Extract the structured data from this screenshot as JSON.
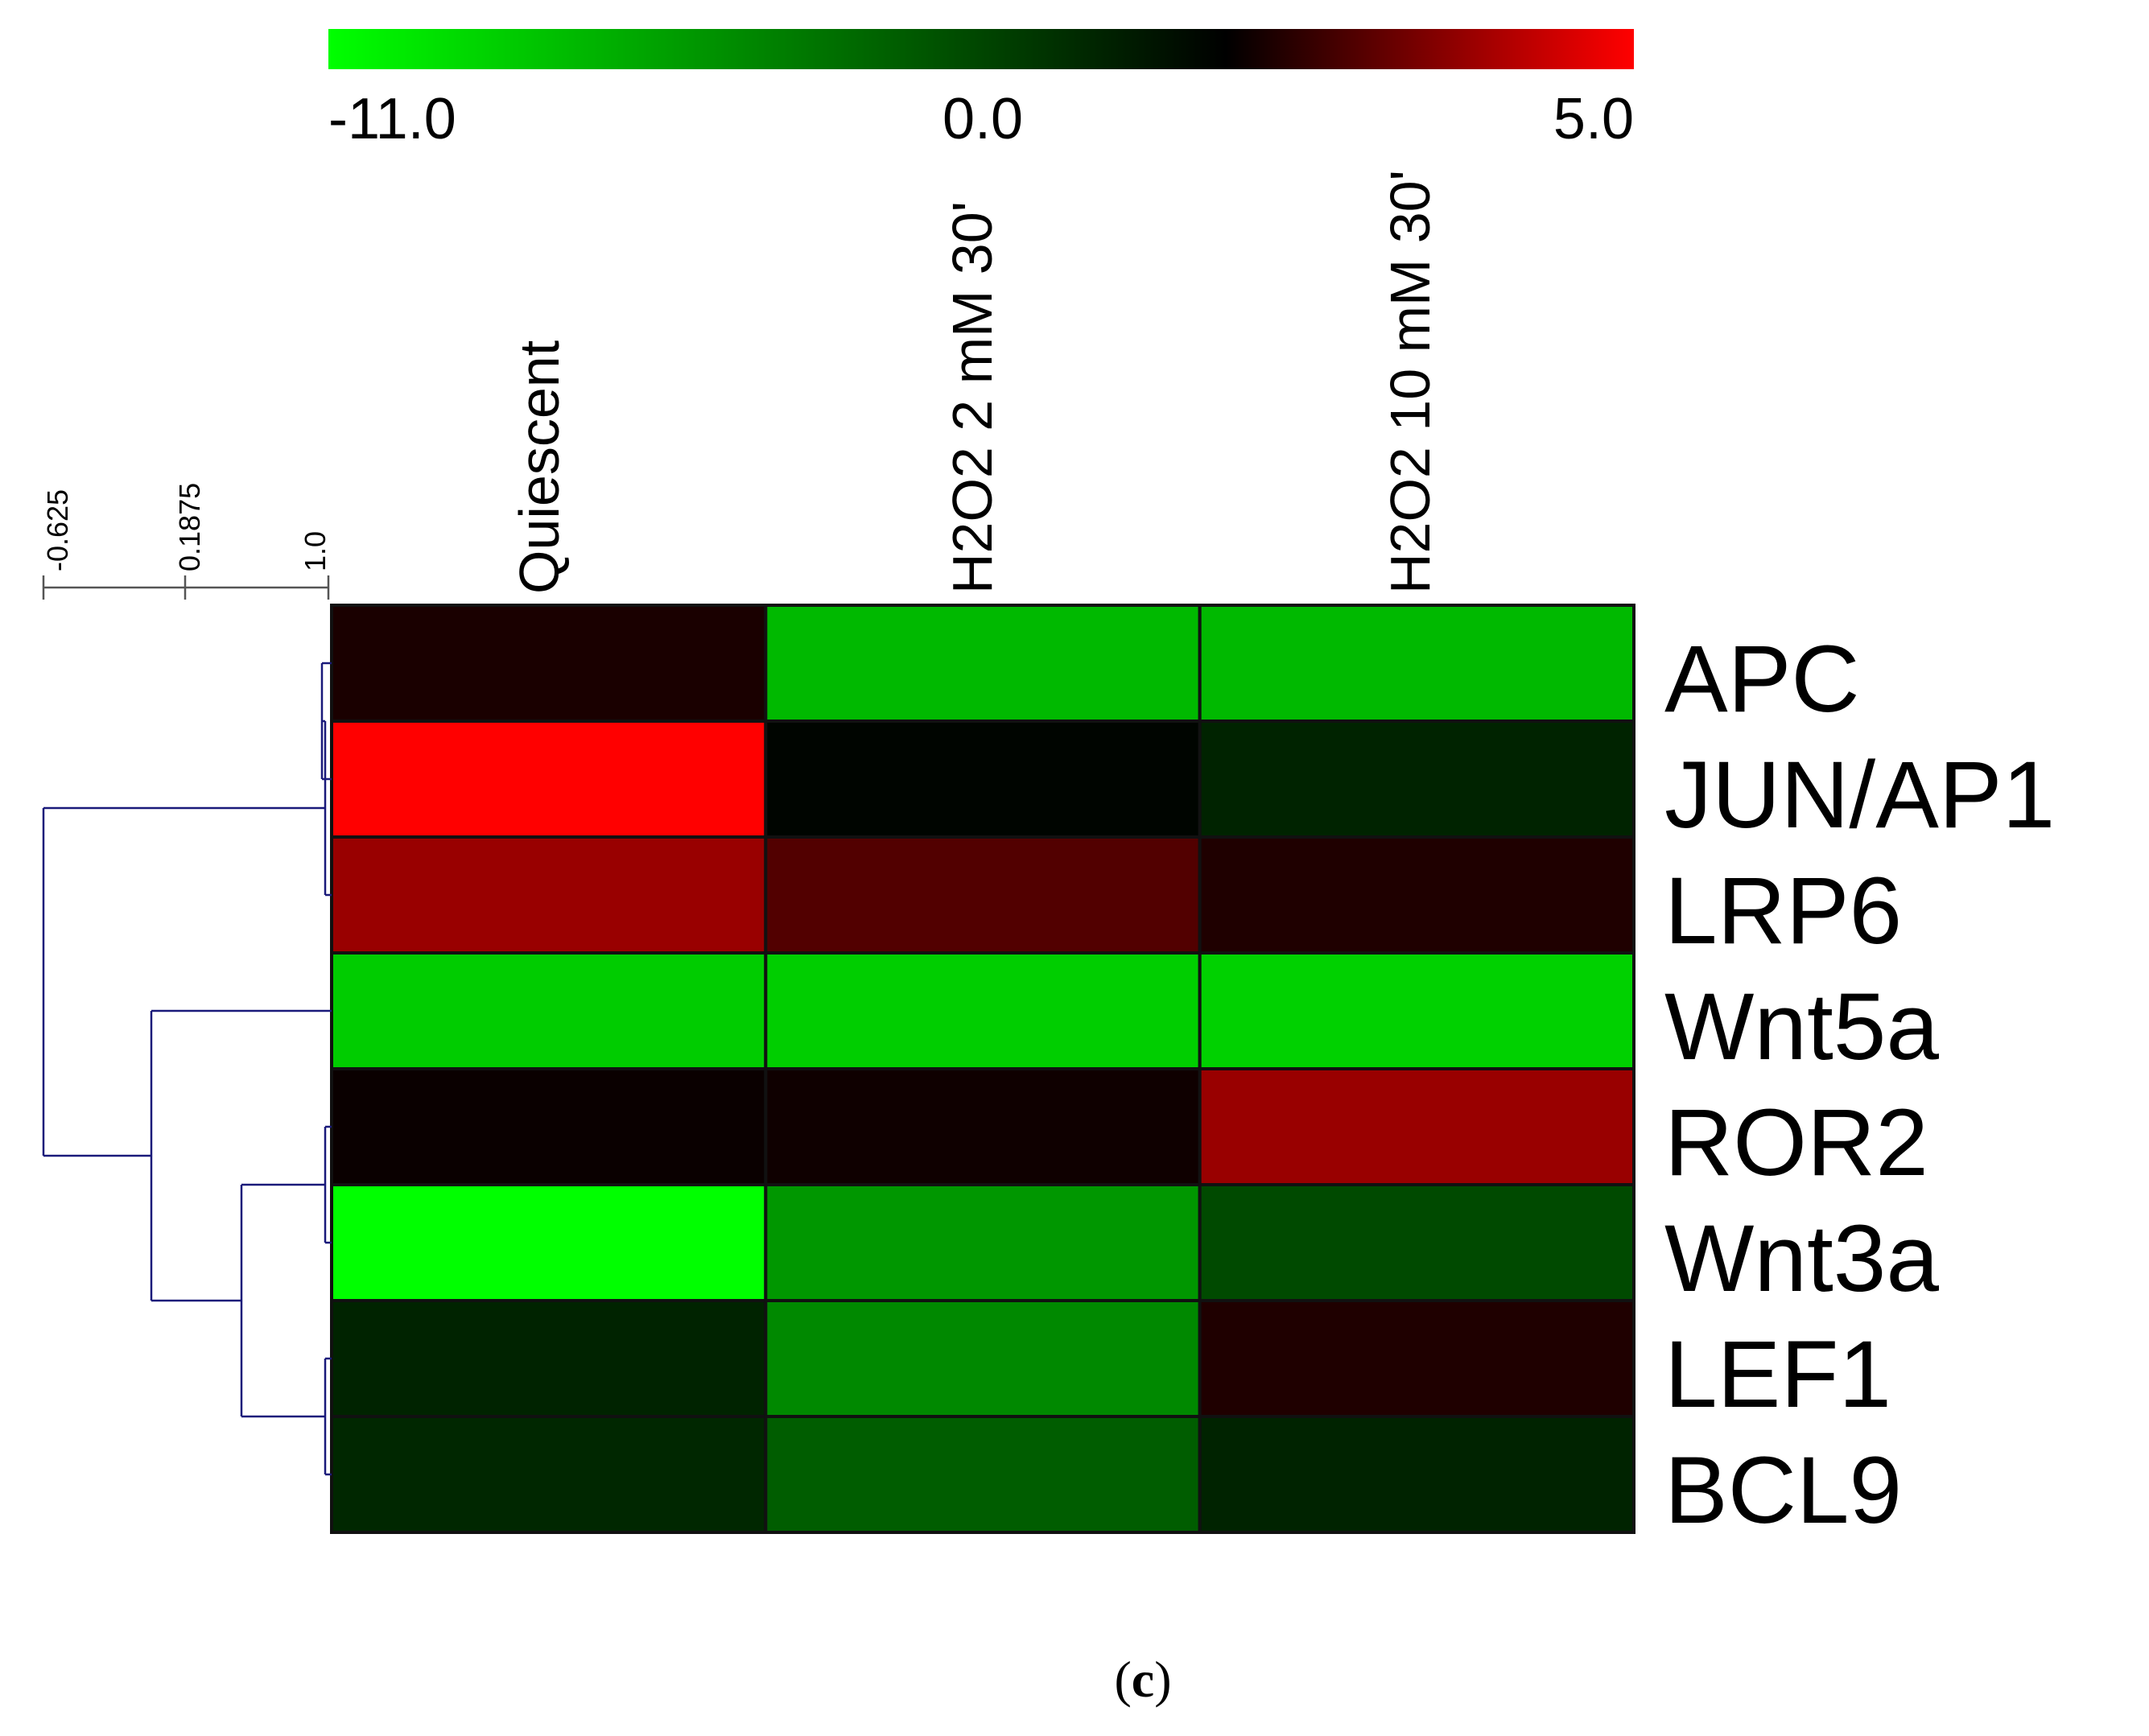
{
  "chart_data": {
    "type": "heatmap",
    "columns": [
      "Quiescent",
      "H2O2 2 mM 30'",
      "H2O2 10 mM 30'"
    ],
    "rows": [
      "APC",
      "JUN/AP1",
      "LRP6",
      "Wnt5a",
      "ROR2",
      "Wnt3a",
      "LEF1",
      "BCL9"
    ],
    "values": [
      [
        0.5,
        -8.0,
        -8.0
      ],
      [
        5.0,
        -0.2,
        -1.5
      ],
      [
        3.0,
        1.6,
        0.6
      ],
      [
        -8.8,
        -8.9,
        -9.0
      ],
      [
        0.2,
        0.3,
        3.0
      ],
      [
        -11.0,
        -6.5,
        -3.2
      ],
      [
        -1.5,
        -5.9,
        0.6
      ],
      [
        -1.7,
        -4.0,
        -1.5
      ]
    ],
    "color_scale": {
      "min": -11.0,
      "mid": 0.0,
      "max": 5.0,
      "min_color": "#00ff00",
      "mid_color": "#000000",
      "max_color": "#ff0000",
      "tick_labels": [
        "-11.0",
        "0.0",
        "5.0"
      ]
    },
    "row_dendrogram": {
      "tick_labels": [
        "-0.625",
        "0.1875",
        "1.0"
      ],
      "line_color": "#1a1a7a"
    },
    "panel_label": "(c)"
  }
}
